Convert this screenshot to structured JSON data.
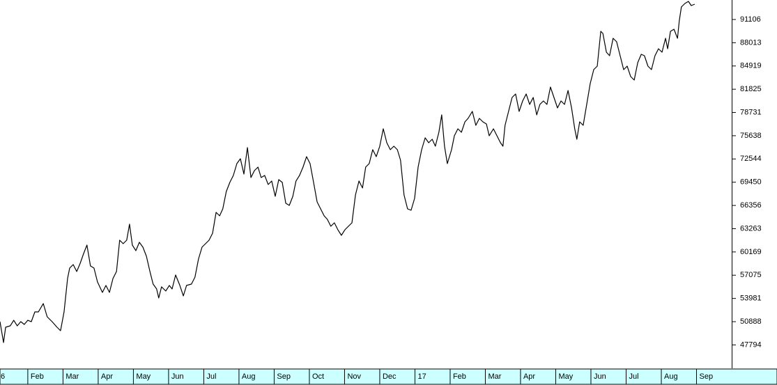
{
  "chart_data": {
    "type": "line",
    "color": "#000000",
    "x": [
      0.21,
      0.31,
      0.37,
      0.5,
      0.6,
      0.7,
      0.8,
      0.9,
      1.0,
      1.1,
      1.2,
      1.3,
      1.44,
      1.55,
      1.69,
      1.83,
      1.93,
      2.03,
      2.13,
      2.19,
      2.29,
      2.39,
      2.49,
      2.58,
      2.68,
      2.78,
      2.88,
      2.98,
      3.12,
      3.22,
      3.32,
      3.42,
      3.52,
      3.61,
      3.71,
      3.81,
      3.89,
      3.97,
      4.07,
      4.17,
      4.27,
      4.37,
      4.47,
      4.56,
      4.66,
      4.72,
      4.8,
      4.92,
      5.02,
      5.1,
      5.2,
      5.32,
      5.42,
      5.51,
      5.65,
      5.75,
      5.85,
      5.95,
      6.05,
      6.15,
      6.25,
      6.35,
      6.45,
      6.54,
      6.64,
      6.74,
      6.84,
      6.94,
      7.04,
      7.14,
      7.24,
      7.34,
      7.44,
      7.54,
      7.63,
      7.73,
      7.83,
      7.93,
      8.03,
      8.13,
      8.23,
      8.33,
      8.43,
      8.53,
      8.62,
      8.72,
      8.82,
      8.92,
      9.02,
      9.12,
      9.22,
      9.32,
      9.42,
      9.51,
      9.61,
      9.71,
      9.81,
      9.91,
      10.01,
      10.11,
      10.21,
      10.31,
      10.41,
      10.51,
      10.6,
      10.7,
      10.8,
      10.9,
      11.0,
      11.1,
      11.2,
      11.3,
      11.4,
      11.5,
      11.59,
      11.69,
      11.79,
      11.89,
      11.99,
      12.09,
      12.19,
      12.29,
      12.39,
      12.49,
      12.58,
      12.68,
      12.76,
      12.84,
      12.92,
      13.04,
      13.12,
      13.22,
      13.32,
      13.42,
      13.51,
      13.63,
      13.73,
      13.83,
      13.93,
      14.03,
      14.11,
      14.23,
      14.33,
      14.43,
      14.5,
      14.56,
      14.66,
      14.76,
      14.86,
      14.96,
      15.06,
      15.16,
      15.26,
      15.36,
      15.46,
      15.55,
      15.65,
      15.75,
      15.85,
      15.95,
      16.05,
      16.15,
      16.25,
      16.35,
      16.45,
      16.54,
      16.6,
      16.68,
      16.78,
      16.88,
      16.98,
      17.08,
      17.18,
      17.24,
      17.28,
      17.34,
      17.44,
      17.53,
      17.63,
      17.73,
      17.83,
      17.93,
      18.03,
      18.13,
      18.23,
      18.33,
      18.43,
      18.52,
      18.62,
      18.72,
      18.82,
      18.92,
      19.02,
      19.12,
      19.18,
      19.26,
      19.36,
      19.46,
      19.51,
      19.57,
      19.67,
      19.77,
      19.85,
      19.95
    ],
    "values": [
      50891,
      48111,
      50150,
      50335,
      51076,
      50335,
      50891,
      50520,
      51076,
      50891,
      52188,
      52188,
      53300,
      51540,
      50891,
      50150,
      49686,
      52188,
      56636,
      58026,
      58489,
      57563,
      58675,
      59879,
      61084,
      58304,
      58026,
      56173,
      54783,
      55709,
      54783,
      56636,
      57563,
      61732,
      61269,
      61732,
      63863,
      61084,
      60342,
      61454,
      60806,
      59601,
      57563,
      55895,
      55246,
      54042,
      55524,
      54968,
      55709,
      55246,
      57099,
      55709,
      54319,
      55709,
      55895,
      56821,
      59230,
      60806,
      61269,
      61732,
      62659,
      65439,
      64975,
      65902,
      68218,
      69423,
      70350,
      71925,
      72574,
      70535,
      74056,
      70072,
      70998,
      71462,
      70072,
      70350,
      69145,
      69608,
      67570,
      69794,
      69423,
      66643,
      66365,
      67570,
      69608,
      70350,
      71462,
      72851,
      71925,
      69423,
      66829,
      65902,
      64975,
      64512,
      63585,
      64049,
      63122,
      62381,
      63122,
      63585,
      64049,
      67755,
      69608,
      68682,
      71462,
      71925,
      73778,
      72851,
      74241,
      76558,
      74705,
      73778,
      74241,
      73778,
      72388,
      67755,
      65902,
      65717,
      67292,
      71462,
      73778,
      75353,
      74705,
      75168,
      74241,
      76095,
      78411,
      74241,
      71925,
      73778,
      75631,
      76558,
      76095,
      77484,
      77948,
      78874,
      77021,
      77948,
      77484,
      77207,
      75631,
      76558,
      75631,
      74705,
      74241,
      77021,
      78874,
      80728,
      81191,
      78874,
      80264,
      81191,
      79801,
      80728,
      78411,
      79801,
      80264,
      79801,
      82117,
      80728,
      79338,
      80264,
      79801,
      81654,
      79338,
      76558,
      75168,
      77484,
      77021,
      79801,
      82581,
      84434,
      84897,
      87677,
      89530,
      89252,
      86750,
      86287,
      88604,
      88140,
      86287,
      84434,
      84897,
      83507,
      83044,
      85361,
      86473,
      86287,
      84897,
      84434,
      86287,
      87214,
      86750,
      88604,
      87214,
      89530,
      89808,
      88604,
      90920,
      92773,
      93237,
      93515,
      92959,
      93144
    ],
    "xlim": [
      0.21,
      21
    ],
    "xticks": [
      {
        "value": 0,
        "label": "6"
      },
      {
        "value": 1,
        "label": "Feb"
      },
      {
        "value": 2,
        "label": "Mar"
      },
      {
        "value": 3,
        "label": "Apr"
      },
      {
        "value": 4,
        "label": "May"
      },
      {
        "value": 5,
        "label": "Jun"
      },
      {
        "value": 6,
        "label": "Jul"
      },
      {
        "value": 7,
        "label": "Aug"
      },
      {
        "value": 8,
        "label": "Sep"
      },
      {
        "value": 9,
        "label": "Oct"
      },
      {
        "value": 10,
        "label": "Nov"
      },
      {
        "value": 11,
        "label": "Dec"
      },
      {
        "value": 12,
        "label": "17"
      },
      {
        "value": 13,
        "label": "Feb"
      },
      {
        "value": 14,
        "label": "Mar"
      },
      {
        "value": 15,
        "label": "Apr"
      },
      {
        "value": 16,
        "label": "May"
      },
      {
        "value": 17,
        "label": "Jun"
      },
      {
        "value": 18,
        "label": "Jul"
      },
      {
        "value": 19,
        "label": "Aug"
      },
      {
        "value": 20,
        "label": "Sep"
      }
    ],
    "ylim": [
      44776,
      93700
    ],
    "yticks": [
      47794,
      50888,
      53981,
      57075,
      60169,
      63263,
      66356,
      69450,
      72544,
      75638,
      78731,
      81825,
      84919,
      88013,
      91106
    ],
    "y_axis_side": "right",
    "x_axis_background": "#ccffff"
  }
}
